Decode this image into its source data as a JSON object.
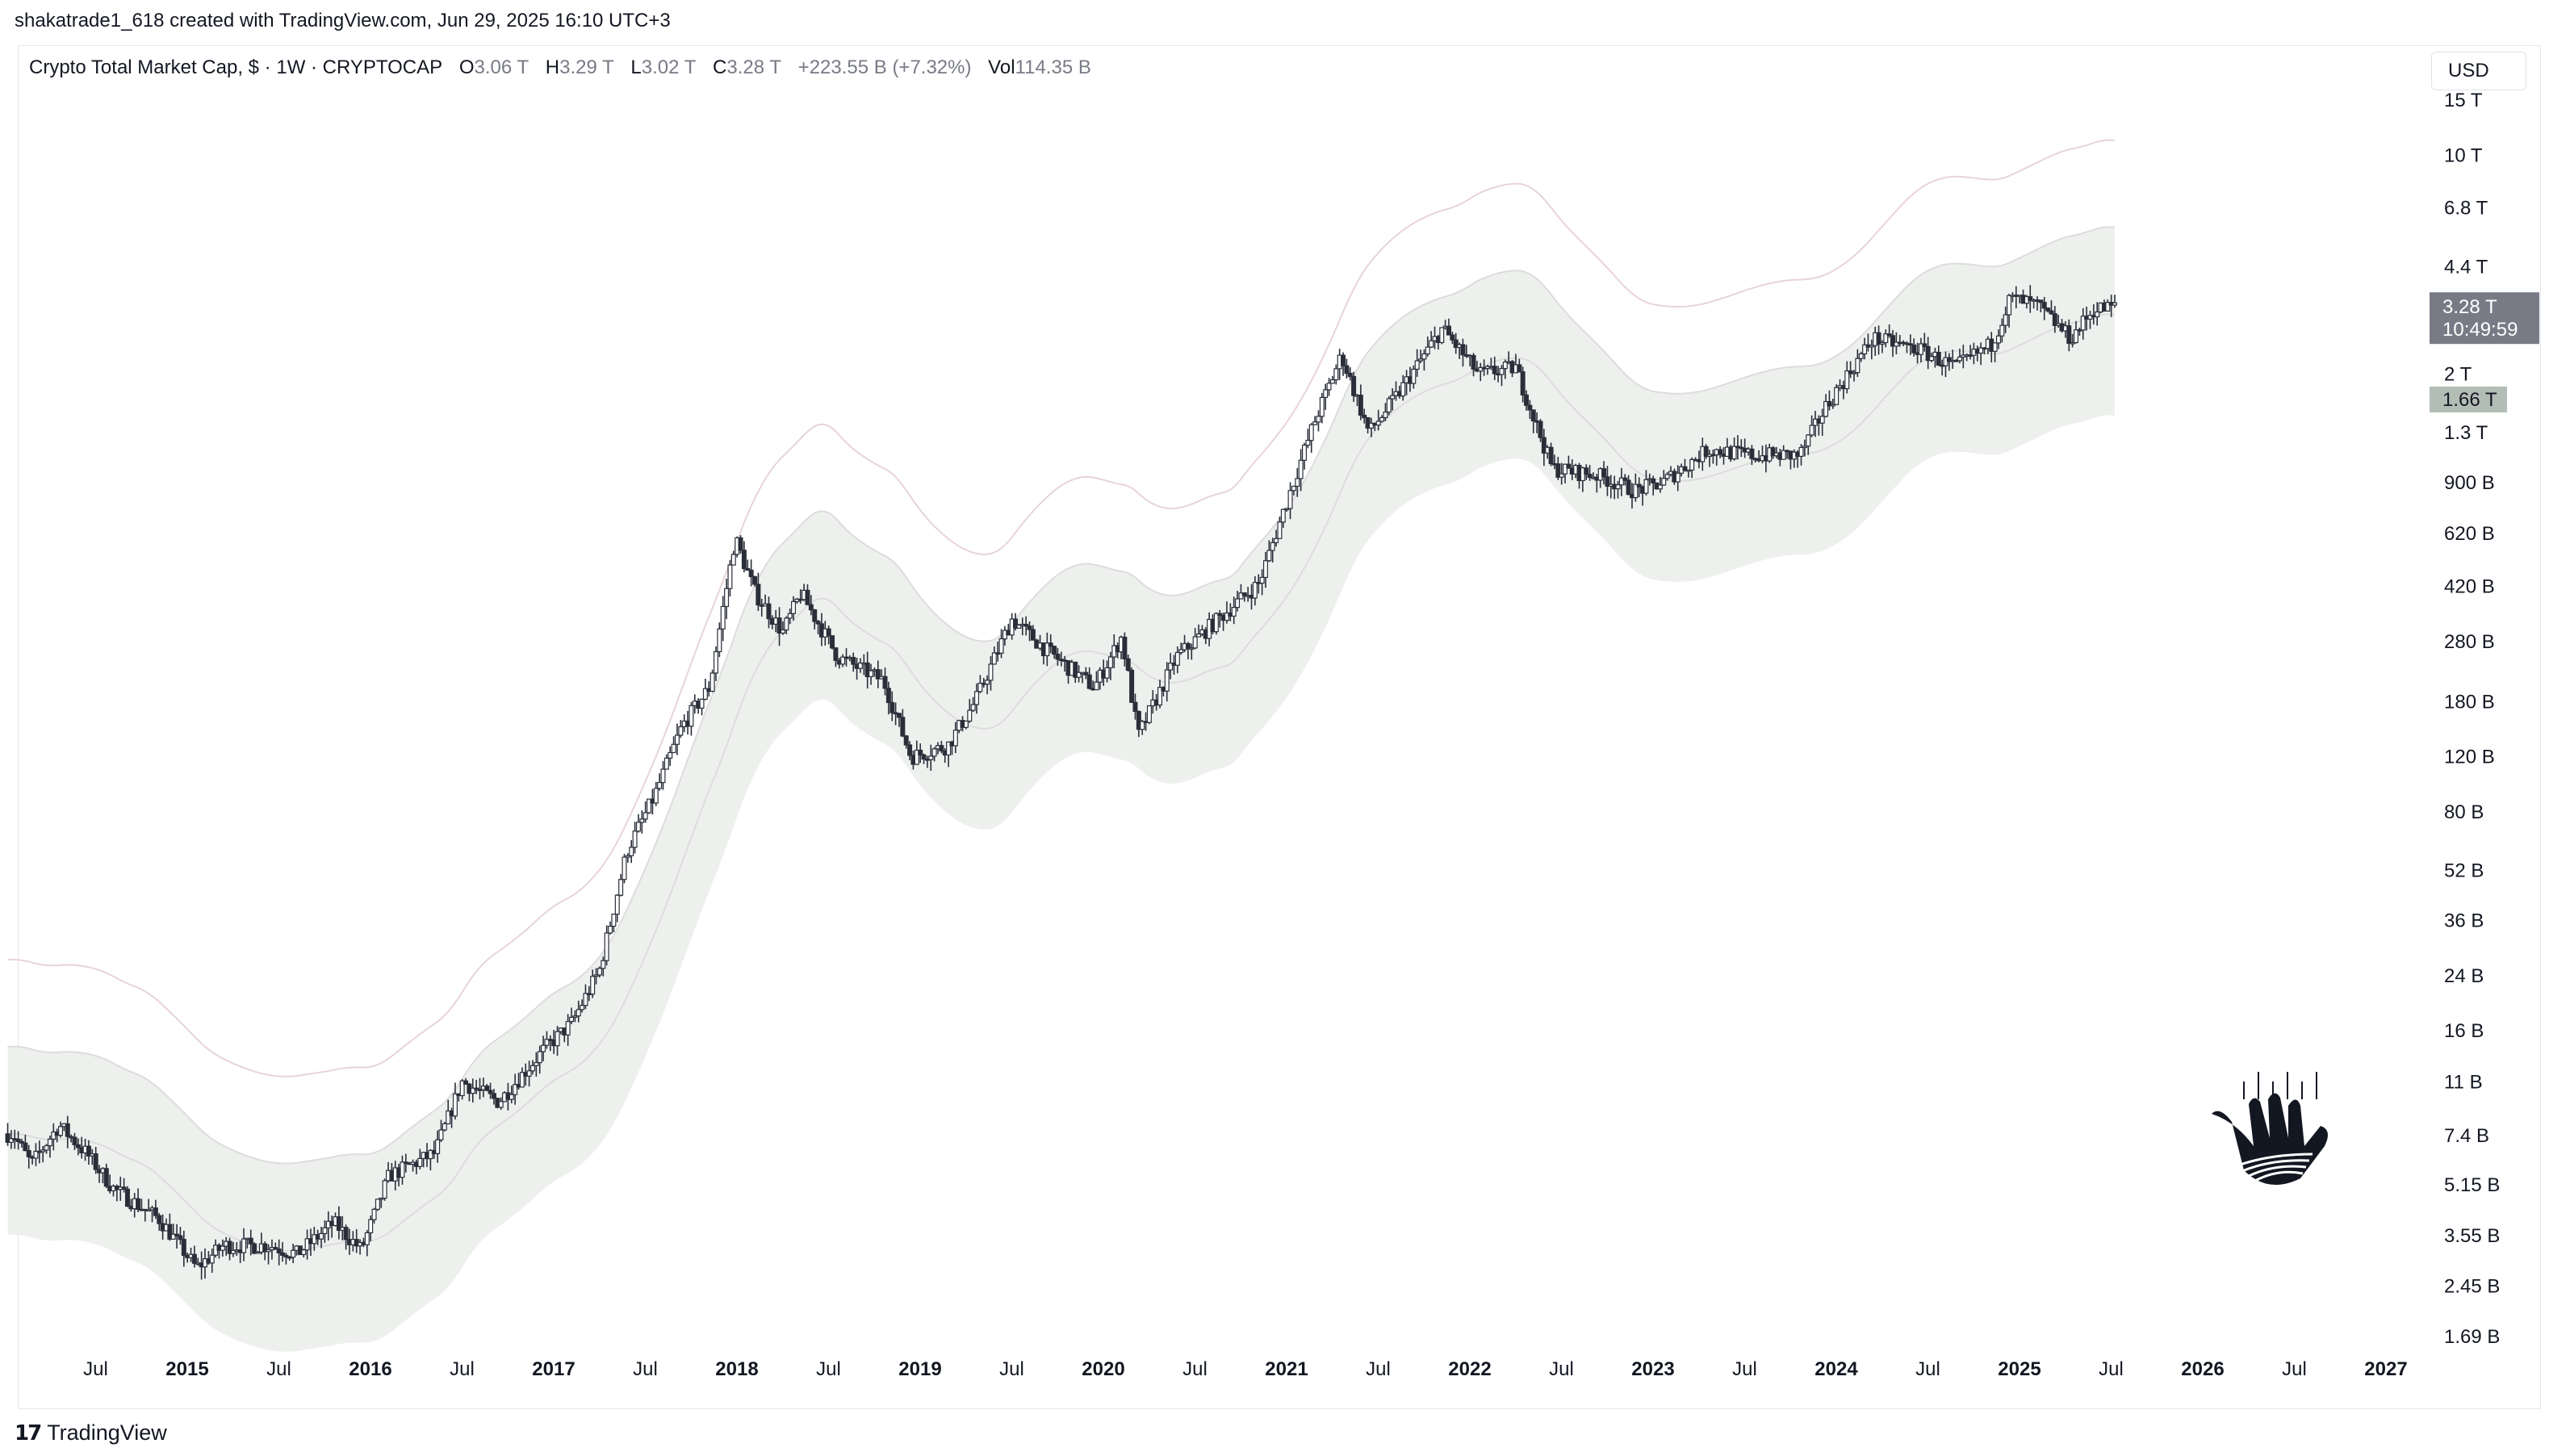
{
  "attribution": "shakatrade1_618 created with TradingView.com, Jun 29, 2025 16:10 UTC+3",
  "legend": {
    "symbol": "Crypto Total Market Cap, $ · 1W · CRYPTOCAP",
    "open_label": "O",
    "open": "3.06 T",
    "high_label": "H",
    "high": "3.29 T",
    "low_label": "L",
    "low": "3.02 T",
    "close_label": "C",
    "close": "3.28 T",
    "change": "+223.55 B (+7.32%)",
    "vol_label": "Vol",
    "vol": "114.35 B"
  },
  "currency_button": "USD",
  "footer_brand": "TradingView",
  "price_tag": {
    "value": "3.28 T",
    "countdown": "10:49:59",
    "color": "#787b86"
  },
  "band_tag": {
    "value": "1.66 T",
    "color": "#b2bdb5"
  },
  "colors": {
    "candle": "#2a2e39",
    "band_fill": "#eef0ee",
    "band_line": "#dcdcdc",
    "envelope_line": "#e8d4d8"
  },
  "chart_data": {
    "type": "candlestick",
    "title": "Crypto Total Market Cap, $ · 1W · CRYPTOCAP",
    "interval": "1W",
    "y_scale": "log",
    "ylim": [
      1400000000.0,
      16000000000000.0
    ],
    "y_ticks": [
      {
        "label": "15 T",
        "value": 15000000000000.0
      },
      {
        "label": "10 T",
        "value": 10000000000000.0
      },
      {
        "label": "6.8 T",
        "value": 6800000000000.0
      },
      {
        "label": "4.4 T",
        "value": 4400000000000.0
      },
      {
        "label": "2 T",
        "value": 2000000000000.0
      },
      {
        "label": "1.3 T",
        "value": 1300000000000.0
      },
      {
        "label": "900 B",
        "value": 900000000000.0
      },
      {
        "label": "620 B",
        "value": 620000000000.0
      },
      {
        "label": "420 B",
        "value": 420000000000.0
      },
      {
        "label": "280 B",
        "value": 280000000000.0
      },
      {
        "label": "180 B",
        "value": 180000000000.0
      },
      {
        "label": "120 B",
        "value": 120000000000.0
      },
      {
        "label": "80 B",
        "value": 80000000000.0
      },
      {
        "label": "52 B",
        "value": 52000000000.0
      },
      {
        "label": "36 B",
        "value": 36000000000.0
      },
      {
        "label": "24 B",
        "value": 24000000000.0
      },
      {
        "label": "16 B",
        "value": 16000000000.0
      },
      {
        "label": "11 B",
        "value": 11000000000.0
      },
      {
        "label": "7.4 B",
        "value": 7400000000.0
      },
      {
        "label": "5.15 B",
        "value": 5150000000.0
      },
      {
        "label": "3.55 B",
        "value": 3550000000.0
      },
      {
        "label": "2.45 B",
        "value": 2450000000.0
      },
      {
        "label": "1.69 B",
        "value": 1690000000.0
      }
    ],
    "x_ticks": [
      {
        "label": "Jul",
        "t": 2014.5,
        "bold": false
      },
      {
        "label": "2015",
        "t": 2015.0,
        "bold": true
      },
      {
        "label": "Jul",
        "t": 2015.5,
        "bold": false
      },
      {
        "label": "2016",
        "t": 2016.0,
        "bold": true
      },
      {
        "label": "Jul",
        "t": 2016.5,
        "bold": false
      },
      {
        "label": "2017",
        "t": 2017.0,
        "bold": true
      },
      {
        "label": "Jul",
        "t": 2017.5,
        "bold": false
      },
      {
        "label": "2018",
        "t": 2018.0,
        "bold": true
      },
      {
        "label": "Jul",
        "t": 2018.5,
        "bold": false
      },
      {
        "label": "2019",
        "t": 2019.0,
        "bold": true
      },
      {
        "label": "Jul",
        "t": 2019.5,
        "bold": false
      },
      {
        "label": "2020",
        "t": 2020.0,
        "bold": true
      },
      {
        "label": "Jul",
        "t": 2020.5,
        "bold": false
      },
      {
        "label": "2021",
        "t": 2021.0,
        "bold": true
      },
      {
        "label": "Jul",
        "t": 2021.5,
        "bold": false
      },
      {
        "label": "2022",
        "t": 2022.0,
        "bold": true
      },
      {
        "label": "Jul",
        "t": 2022.5,
        "bold": false
      },
      {
        "label": "2023",
        "t": 2023.0,
        "bold": true
      },
      {
        "label": "Jul",
        "t": 2023.5,
        "bold": false
      },
      {
        "label": "2024",
        "t": 2024.0,
        "bold": true
      },
      {
        "label": "Jul",
        "t": 2024.5,
        "bold": false
      },
      {
        "label": "2025",
        "t": 2025.0,
        "bold": true
      },
      {
        "label": "Jul",
        "t": 2025.5,
        "bold": false
      },
      {
        "label": "2026",
        "t": 2026.0,
        "bold": true
      },
      {
        "label": "Jul",
        "t": 2026.5,
        "bold": false
      },
      {
        "label": "2027",
        "t": 2027.0,
        "bold": true
      }
    ],
    "price_path": [
      [
        2014.05,
        7500000000.0
      ],
      [
        2014.15,
        6000000000.0
      ],
      [
        2014.3,
        8000000000.0
      ],
      [
        2014.45,
        6500000000.0
      ],
      [
        2014.6,
        5000000000.0
      ],
      [
        2014.85,
        4000000000.0
      ],
      [
        2015.05,
        2800000000.0
      ],
      [
        2015.2,
        3300000000.0
      ],
      [
        2015.45,
        3300000000.0
      ],
      [
        2015.6,
        3100000000.0
      ],
      [
        2015.8,
        3900000000.0
      ],
      [
        2015.95,
        3200000000.0
      ],
      [
        2016.1,
        5500000000.0
      ],
      [
        2016.35,
        6500000000.0
      ],
      [
        2016.5,
        11000000000.0
      ],
      [
        2016.7,
        9500000000.0
      ],
      [
        2016.95,
        14000000000.0
      ],
      [
        2017.1,
        17000000000.0
      ],
      [
        2017.25,
        25000000000.0
      ],
      [
        2017.4,
        60000000000.0
      ],
      [
        2017.55,
        90000000000.0
      ],
      [
        2017.7,
        150000000000.0
      ],
      [
        2017.85,
        200000000000.0
      ],
      [
        2017.99,
        600000000000.0
      ],
      [
        2018.1,
        400000000000.0
      ],
      [
        2018.25,
        300000000000.0
      ],
      [
        2018.35,
        400000000000.0
      ],
      [
        2018.55,
        250000000000.0
      ],
      [
        2018.8,
        210000000000.0
      ],
      [
        2018.95,
        120000000000.0
      ],
      [
        2019.15,
        130000000000.0
      ],
      [
        2019.3,
        180000000000.0
      ],
      [
        2019.5,
        330000000000.0
      ],
      [
        2019.7,
        260000000000.0
      ],
      [
        2019.95,
        200000000000.0
      ],
      [
        2020.1,
        290000000000.0
      ],
      [
        2020.19,
        140000000000.0
      ],
      [
        2020.4,
        250000000000.0
      ],
      [
        2020.6,
        320000000000.0
      ],
      [
        2020.85,
        430000000000.0
      ],
      [
        2020.99,
        750000000000.0
      ],
      [
        2021.15,
        1400000000000.0
      ],
      [
        2021.3,
        2300000000000.0
      ],
      [
        2021.45,
        1300000000000.0
      ],
      [
        2021.6,
        1700000000000.0
      ],
      [
        2021.85,
        2800000000000.0
      ],
      [
        2022.05,
        2000000000000.0
      ],
      [
        2022.25,
        2100000000000.0
      ],
      [
        2022.45,
        1000000000000.0
      ],
      [
        2022.7,
        950000000000.0
      ],
      [
        2022.9,
        850000000000.0
      ],
      [
        2023.05,
        900000000000.0
      ],
      [
        2023.3,
        1150000000000.0
      ],
      [
        2023.55,
        1100000000000.0
      ],
      [
        2023.8,
        1100000000000.0
      ],
      [
        2023.95,
        1600000000000.0
      ],
      [
        2024.2,
        2600000000000.0
      ],
      [
        2024.45,
        2400000000000.0
      ],
      [
        2024.65,
        2100000000000.0
      ],
      [
        2024.85,
        2500000000000.0
      ],
      [
        2024.95,
        3500000000000.0
      ],
      [
        2025.1,
        3300000000000.0
      ],
      [
        2025.28,
        2600000000000.0
      ],
      [
        2025.4,
        3200000000000.0
      ],
      [
        2025.5,
        3280000000000.0
      ]
    ],
    "series": [
      {
        "name": "Crypto Total Market Cap",
        "last": "3.28 T"
      }
    ],
    "last_close": 3280000000000.0,
    "band_value": 1660000000000.0
  }
}
